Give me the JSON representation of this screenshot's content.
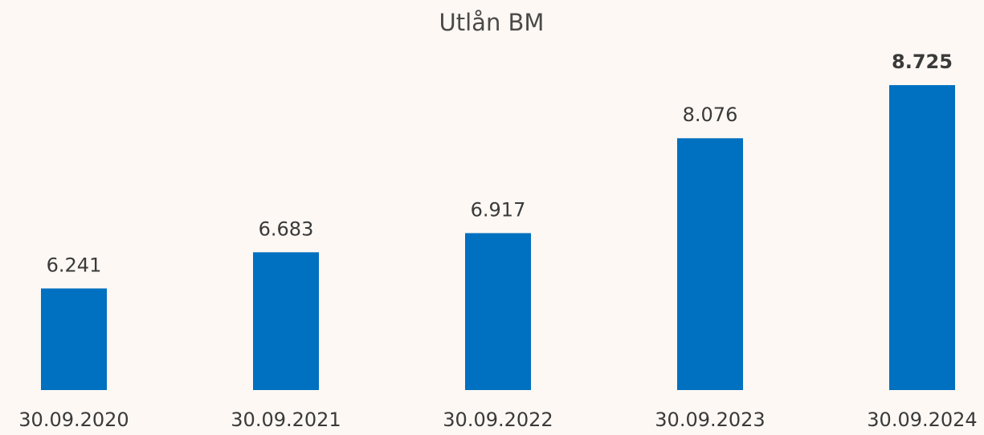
{
  "chart_data": {
    "type": "bar",
    "title": "Utlån BM",
    "categories": [
      "30.09.2020",
      "30.09.2021",
      "30.09.2022",
      "30.09.2023",
      "30.09.2024"
    ],
    "values": [
      6241,
      6683,
      6917,
      8076,
      8725
    ],
    "value_labels": [
      "6.241",
      "6.683",
      "6.917",
      "8.076",
      "8.725"
    ],
    "color": "#0070c0",
    "ylim": [
      5000,
      9000
    ]
  }
}
